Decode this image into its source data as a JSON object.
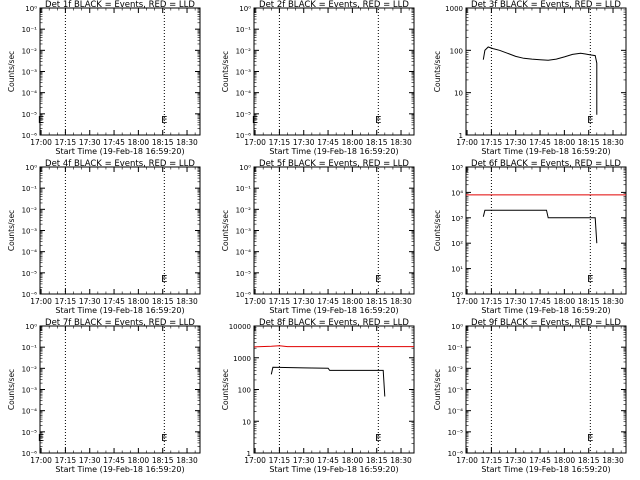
{
  "page": {
    "xlabel": "Start Time (19-Feb-18 16:59:20)",
    "ylabel": "Counts/sec",
    "time_ticks": [
      "17:00",
      "17:15",
      "17:30",
      "17:45",
      "18:00",
      "18:15",
      "18:30"
    ],
    "colors": {
      "events": "#000000",
      "lld": "#e00000",
      "marker": "#000000"
    }
  },
  "chart_data": [
    {
      "type": "line",
      "title": "Det 1f BLACK = Events, RED = LLD",
      "x_range": [
        "16:59:20",
        "18:38:00"
      ],
      "y_scale": "log",
      "yticks": [
        "10⁻⁶",
        "10⁻⁵",
        "10⁻⁴",
        "10⁻³",
        "10⁻²",
        "10⁻¹",
        "10⁰"
      ],
      "vlines": [
        "17:15",
        "18:16"
      ],
      "marks": [
        {
          "x": "17:00",
          "text": "E"
        },
        {
          "x": "18:16",
          "text": "E"
        }
      ],
      "series": []
    },
    {
      "type": "line",
      "title": "Det 2f BLACK = Events, RED = LLD",
      "x_range": [
        "16:59:20",
        "18:38:00"
      ],
      "y_scale": "log",
      "yticks": [
        "10⁻⁶",
        "10⁻⁵",
        "10⁻⁴",
        "10⁻³",
        "10⁻²",
        "10⁻¹",
        "10⁰"
      ],
      "vlines": [
        "17:15",
        "18:16"
      ],
      "marks": [
        {
          "x": "17:00",
          "text": "E"
        },
        {
          "x": "18:16",
          "text": "E"
        }
      ],
      "series": []
    },
    {
      "type": "line",
      "title": "Det 3f BLACK = Events, RED = LLD",
      "x_range": [
        "16:59:20",
        "18:38:00"
      ],
      "y_scale": "log",
      "yticks": [
        "1",
        "10",
        "100",
        "1000"
      ],
      "vlines": [
        "17:15",
        "18:16"
      ],
      "marks": [
        {
          "x": "18:16",
          "text": "E"
        }
      ],
      "series": [
        {
          "color": "#000000",
          "points": [
            [
              "17:10",
              60
            ],
            [
              "17:11",
              100
            ],
            [
              "17:13",
              120
            ],
            [
              "17:16",
              110
            ],
            [
              "17:20",
              100
            ],
            [
              "17:25",
              85
            ],
            [
              "17:30",
              72
            ],
            [
              "17:35",
              65
            ],
            [
              "17:40",
              62
            ],
            [
              "17:45",
              60
            ],
            [
              "17:50",
              58
            ],
            [
              "17:55",
              62
            ],
            [
              "18:00",
              70
            ],
            [
              "18:05",
              80
            ],
            [
              "18:10",
              85
            ],
            [
              "18:13",
              82
            ],
            [
              "18:16",
              78
            ],
            [
              "18:19",
              75
            ],
            [
              "18:20",
              50
            ],
            [
              "18:20",
              3
            ]
          ]
        }
      ]
    },
    {
      "type": "line",
      "title": "Det 4f BLACK = Events, RED = LLD",
      "x_range": [
        "16:59:20",
        "18:38:00"
      ],
      "y_scale": "log",
      "yticks": [
        "10⁻⁶",
        "10⁻⁵",
        "10⁻⁴",
        "10⁻³",
        "10⁻²",
        "10⁻¹",
        "10⁰"
      ],
      "vlines": [
        "17:15",
        "18:16"
      ],
      "marks": [
        {
          "x": "18:16",
          "text": "E"
        }
      ],
      "series": []
    },
    {
      "type": "line",
      "title": "Det 5f BLACK = Events, RED = LLD",
      "x_range": [
        "16:59:20",
        "18:38:00"
      ],
      "y_scale": "log",
      "yticks": [
        "10⁻⁶",
        "10⁻⁵",
        "10⁻⁴",
        "10⁻³",
        "10⁻²",
        "10⁻¹",
        "10⁰"
      ],
      "vlines": [
        "17:15",
        "18:16"
      ],
      "marks": [
        {
          "x": "18:16",
          "text": "E"
        }
      ],
      "series": []
    },
    {
      "type": "line",
      "title": "Det 6f BLACK = Events, RED = LLD",
      "x_range": [
        "16:59:20",
        "18:38:00"
      ],
      "y_scale": "log",
      "yticks": [
        "10⁰",
        "10¹",
        "10²",
        "10³",
        "10⁴",
        "10⁵"
      ],
      "vlines": [
        "17:15",
        "18:16"
      ],
      "marks": [
        {
          "x": "18:16",
          "text": "E"
        }
      ],
      "series": [
        {
          "color": "#e00000",
          "points": [
            [
              "16:59:20",
              8000
            ],
            [
              "18:38:00",
              8000
            ]
          ]
        },
        {
          "color": "#000000",
          "points": [
            [
              "17:10",
              1100
            ],
            [
              "17:11",
              2000
            ],
            [
              "17:30",
              2000
            ],
            [
              "17:49",
              2000
            ],
            [
              "17:50",
              1000
            ],
            [
              "18:17",
              1000
            ],
            [
              "18:19",
              1000
            ],
            [
              "18:20",
              100
            ]
          ]
        }
      ]
    },
    {
      "type": "line",
      "title": "Det 7f BLACK = Events, RED = LLD",
      "x_range": [
        "16:59:20",
        "18:38:00"
      ],
      "y_scale": "log",
      "yticks": [
        "10⁻⁶",
        "10⁻⁵",
        "10⁻⁴",
        "10⁻³",
        "10⁻²",
        "10⁻¹",
        "10⁰"
      ],
      "vlines": [
        "17:15",
        "18:16"
      ],
      "marks": [
        {
          "x": "17:00",
          "text": "E"
        },
        {
          "x": "18:16",
          "text": "E"
        }
      ],
      "series": []
    },
    {
      "type": "line",
      "title": "Det 8f BLACK = Events, RED = LLD",
      "x_range": [
        "16:59:20",
        "18:38:00"
      ],
      "y_scale": "log",
      "yticks": [
        "1",
        "10",
        "100",
        "1000",
        "10000"
      ],
      "vlines": [
        "17:15",
        "18:16"
      ],
      "marks": [
        {
          "x": "18:16",
          "text": "E"
        }
      ],
      "series": [
        {
          "color": "#e00000",
          "points": [
            [
              "16:59:20",
              2200
            ],
            [
              "17:10",
              2300
            ],
            [
              "17:15",
              2400
            ],
            [
              "17:20",
              2250
            ],
            [
              "17:35",
              2250
            ],
            [
              "18:00",
              2250
            ],
            [
              "18:38:00",
              2250
            ]
          ]
        },
        {
          "color": "#000000",
          "points": [
            [
              "17:10",
              300
            ],
            [
              "17:11",
              500
            ],
            [
              "17:30",
              480
            ],
            [
              "17:45",
              470
            ],
            [
              "17:46",
              400
            ],
            [
              "18:17",
              400
            ],
            [
              "18:19",
              400
            ],
            [
              "18:20",
              60
            ]
          ]
        }
      ]
    },
    {
      "type": "line",
      "title": "Det 9f BLACK = Events, RED = LLD",
      "x_range": [
        "16:59:20",
        "18:38:00"
      ],
      "y_scale": "log",
      "yticks": [
        "10⁻⁶",
        "10⁻⁵",
        "10⁻⁴",
        "10⁻³",
        "10⁻²",
        "10⁻¹",
        "10⁰"
      ],
      "vlines": [
        "17:15",
        "18:16"
      ],
      "marks": [
        {
          "x": "18:16",
          "text": "E"
        }
      ],
      "series": []
    }
  ]
}
